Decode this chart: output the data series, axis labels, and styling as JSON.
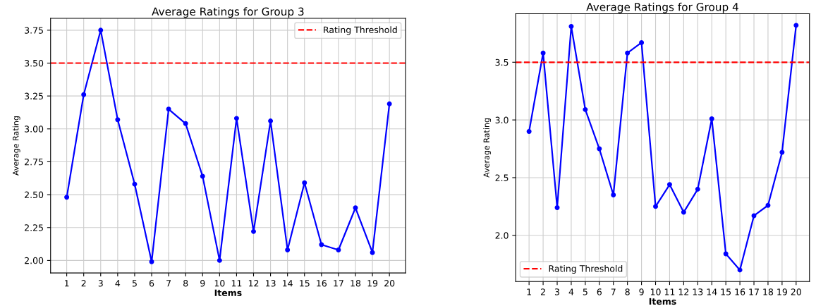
{
  "chart_data": [
    {
      "type": "line",
      "title": "Average Ratings for Group 3",
      "xlabel": "Items",
      "ylabel": "Average Rating",
      "categories": [
        "1",
        "2",
        "3",
        "4",
        "5",
        "6",
        "7",
        "8",
        "9",
        "10",
        "11",
        "12",
        "13",
        "14",
        "15",
        "16",
        "17",
        "18",
        "19",
        "20"
      ],
      "series": [
        {
          "color": "#0000ff",
          "values": [
            2.48,
            3.26,
            3.75,
            3.07,
            2.58,
            1.99,
            3.15,
            3.04,
            2.64,
            2.0,
            3.08,
            2.22,
            3.06,
            2.08,
            2.59,
            2.12,
            2.08,
            2.4,
            2.06,
            3.19
          ]
        }
      ],
      "ylim": [
        1.905,
        3.84
      ],
      "yticks": [
        {
          "value": 2,
          "label": "2.00"
        },
        {
          "value": 2.25,
          "label": "2.25"
        },
        {
          "value": 2.5,
          "label": "2.50"
        },
        {
          "value": 2.75,
          "label": "2.75"
        },
        {
          "value": 3,
          "label": "3.00"
        },
        {
          "value": 3.25,
          "label": "3.25"
        },
        {
          "value": 3.5,
          "label": "3.50"
        },
        {
          "value": 3.75,
          "label": "3.75"
        }
      ],
      "ref_lines": [
        {
          "axis": "y",
          "value": 3.5,
          "label": "Rating Threshold",
          "color": "#ff0000",
          "line_style": "dashed"
        }
      ],
      "grid": true,
      "legend": "top right",
      "marker": "circle",
      "line_style": "solid"
    },
    {
      "type": "line",
      "title": "Average Ratings for Group 4",
      "xlabel": "Items",
      "ylabel": "Average Rating",
      "categories": [
        "1",
        "2",
        "3",
        "4",
        "5",
        "6",
        "7",
        "8",
        "9",
        "10",
        "11",
        "12",
        "13",
        "14",
        "15",
        "16",
        "17",
        "18",
        "19",
        "20"
      ],
      "series": [
        {
          "color": "#0000ff",
          "values": [
            2.9,
            3.58,
            2.24,
            3.81,
            3.09,
            2.75,
            2.35,
            3.58,
            3.67,
            2.25,
            2.44,
            2.2,
            2.4,
            3.01,
            1.84,
            1.7,
            2.17,
            2.26,
            2.72,
            3.82
          ]
        }
      ],
      "ylim": [
        1.6,
        3.92
      ],
      "yticks": [
        {
          "value": 2,
          "label": "2.0"
        },
        {
          "value": 2.5,
          "label": "2.5"
        },
        {
          "value": 3,
          "label": "3.0"
        },
        {
          "value": 3.5,
          "label": "3.5"
        }
      ],
      "ref_lines": [
        {
          "axis": "y",
          "value": 3.5,
          "label": "Rating Threshold",
          "color": "#ff0000",
          "line_style": "dashed"
        }
      ],
      "grid": true,
      "legend": "bottom left",
      "marker": "circle",
      "line_style": "solid"
    }
  ]
}
